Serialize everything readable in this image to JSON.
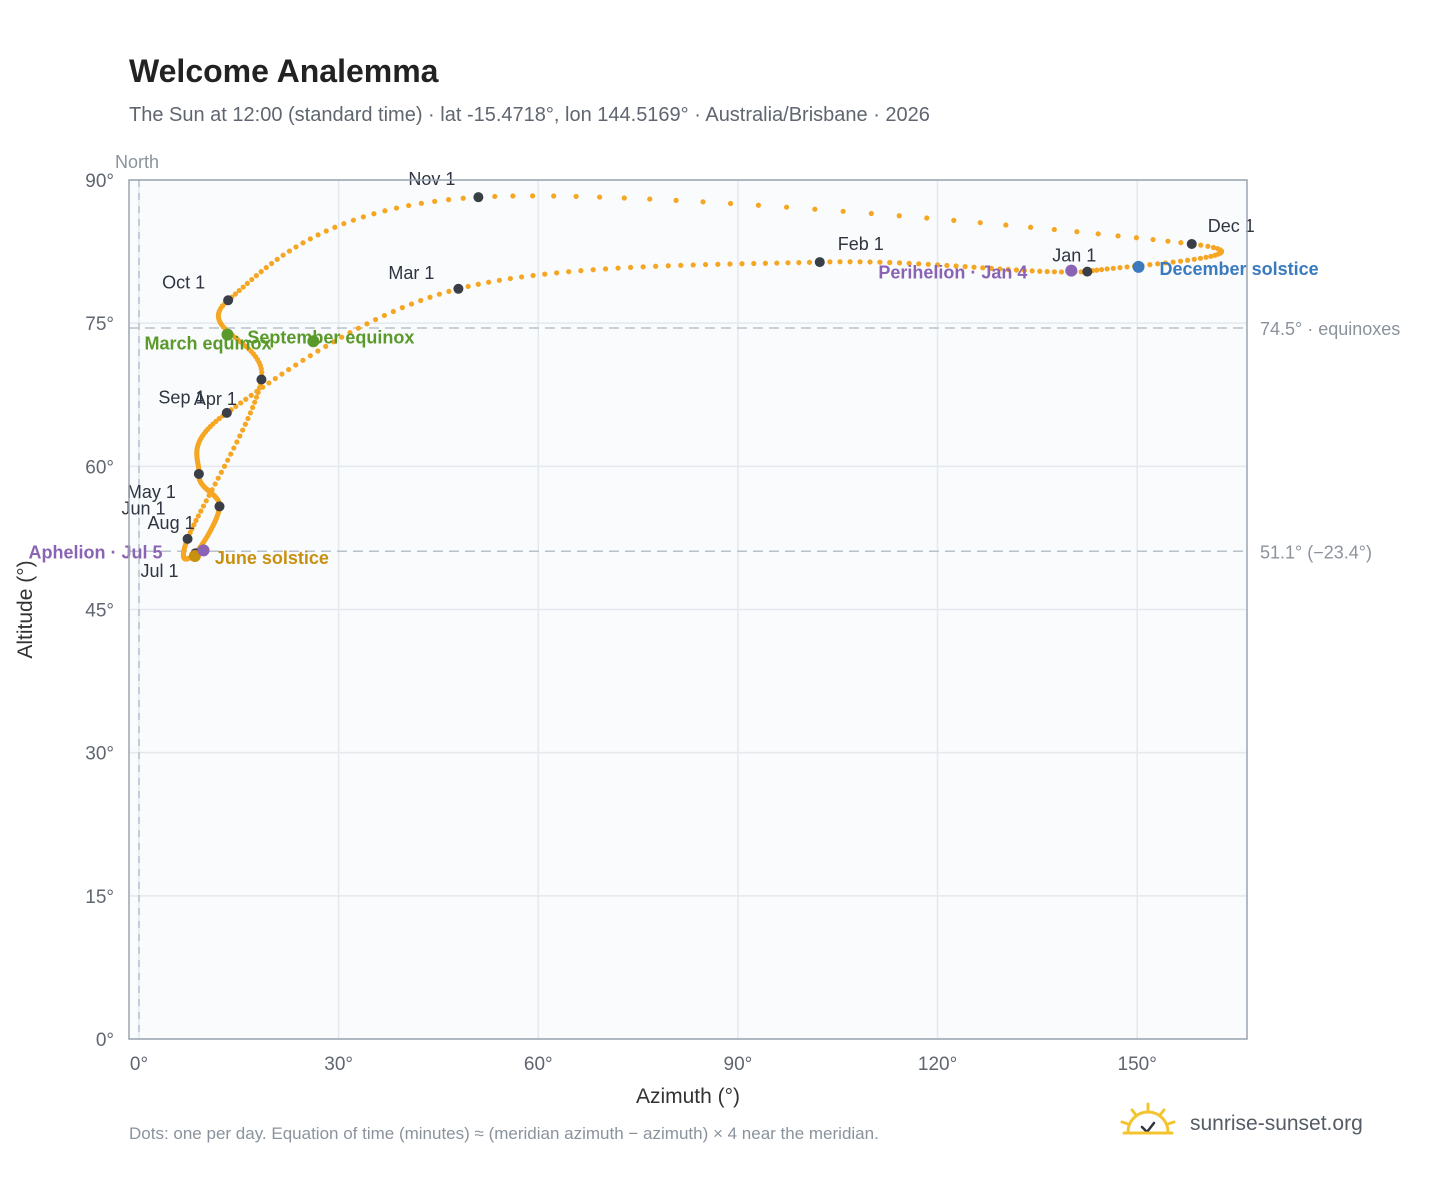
{
  "header": {
    "title": "Welcome Analemma",
    "subtitle": "The Sun at 12:00 (standard time) · lat -15.4718°, lon 144.5169° · Australia/Brisbane · 2026"
  },
  "footer": {
    "note": "Dots: one per day. Equation of time (minutes) ≈ (meridian azimuth − azimuth) × 4 near the meridian.",
    "brand": "sunrise-sunset.org"
  },
  "colors": {
    "curve": "#f5a623",
    "month_marker": "#3a3f47",
    "equinox": "#5a9a2a",
    "june_solstice": "#c8900f",
    "december_solstice": "#3a7bbf",
    "apsis": "#8a63b5",
    "reference_line": "#b8c2cc",
    "plot_bg": "#f9fbfd",
    "plot_border": "#9aa5b1"
  },
  "chart_data": {
    "type": "scatter",
    "xlabel": "Azimuth (°)",
    "ylabel": "Altitude (°)",
    "xlim": [
      -1.5,
      166.5
    ],
    "ylim": [
      0,
      90
    ],
    "xticks": [
      0,
      30,
      60,
      90,
      120,
      150
    ],
    "xtick_labels": [
      "0°",
      "30°",
      "60°",
      "90°",
      "120°",
      "150°"
    ],
    "yticks": [
      0,
      15,
      30,
      45,
      60,
      75,
      90
    ],
    "ytick_labels": [
      "0°",
      "15°",
      "30°",
      "45°",
      "60°",
      "75°",
      "90°"
    ],
    "grid": true,
    "north_line": {
      "x": 0,
      "label": "North"
    },
    "reference_lines": [
      {
        "y": 74.5,
        "label": "74.5° · equinoxes"
      },
      {
        "y": 51.1,
        "label": "51.1° (−23.4°)"
      }
    ],
    "month_markers": [
      {
        "label": "Jan 1",
        "x": 142.5,
        "y": 80.4
      },
      {
        "label": "Feb 1",
        "x": 102.3,
        "y": 81.4
      },
      {
        "label": "Mar 1",
        "x": 48.0,
        "y": 78.6
      },
      {
        "label": "Apr 1",
        "x": 13.2,
        "y": 65.6
      },
      {
        "label": "May 1",
        "x": 9.0,
        "y": 59.2
      },
      {
        "label": "Jun 1",
        "x": 12.1,
        "y": 55.8
      },
      {
        "label": "Jul 1",
        "x": 8.5,
        "y": 50.9
      },
      {
        "label": "Aug 1",
        "x": 7.3,
        "y": 52.4
      },
      {
        "label": "Sep 1",
        "x": 18.4,
        "y": 69.1
      },
      {
        "label": "Oct 1",
        "x": 13.4,
        "y": 77.4
      },
      {
        "label": "Nov 1",
        "x": 51.0,
        "y": 88.2
      },
      {
        "label": "Dec 1",
        "x": 158.2,
        "y": 83.3
      }
    ],
    "events": [
      {
        "label": "March equinox",
        "x": 13.3,
        "y": 73.8,
        "color": "#5a9a2a"
      },
      {
        "label": "September equinox",
        "x": 26.2,
        "y": 73.1,
        "color": "#5a9a2a"
      },
      {
        "label": "June solstice",
        "x": 8.4,
        "y": 50.6,
        "color": "#c8900f"
      },
      {
        "label": "December solstice",
        "x": 150.2,
        "y": 80.9,
        "color": "#3a7bbf"
      },
      {
        "label": "Perihelion · Jan 4",
        "x": 140.1,
        "y": 80.5,
        "color": "#8a63b5"
      },
      {
        "label": "Aphelion · Jul 5",
        "x": 9.7,
        "y": 51.2,
        "color": "#8a63b5"
      }
    ],
    "dot_count": 365
  }
}
